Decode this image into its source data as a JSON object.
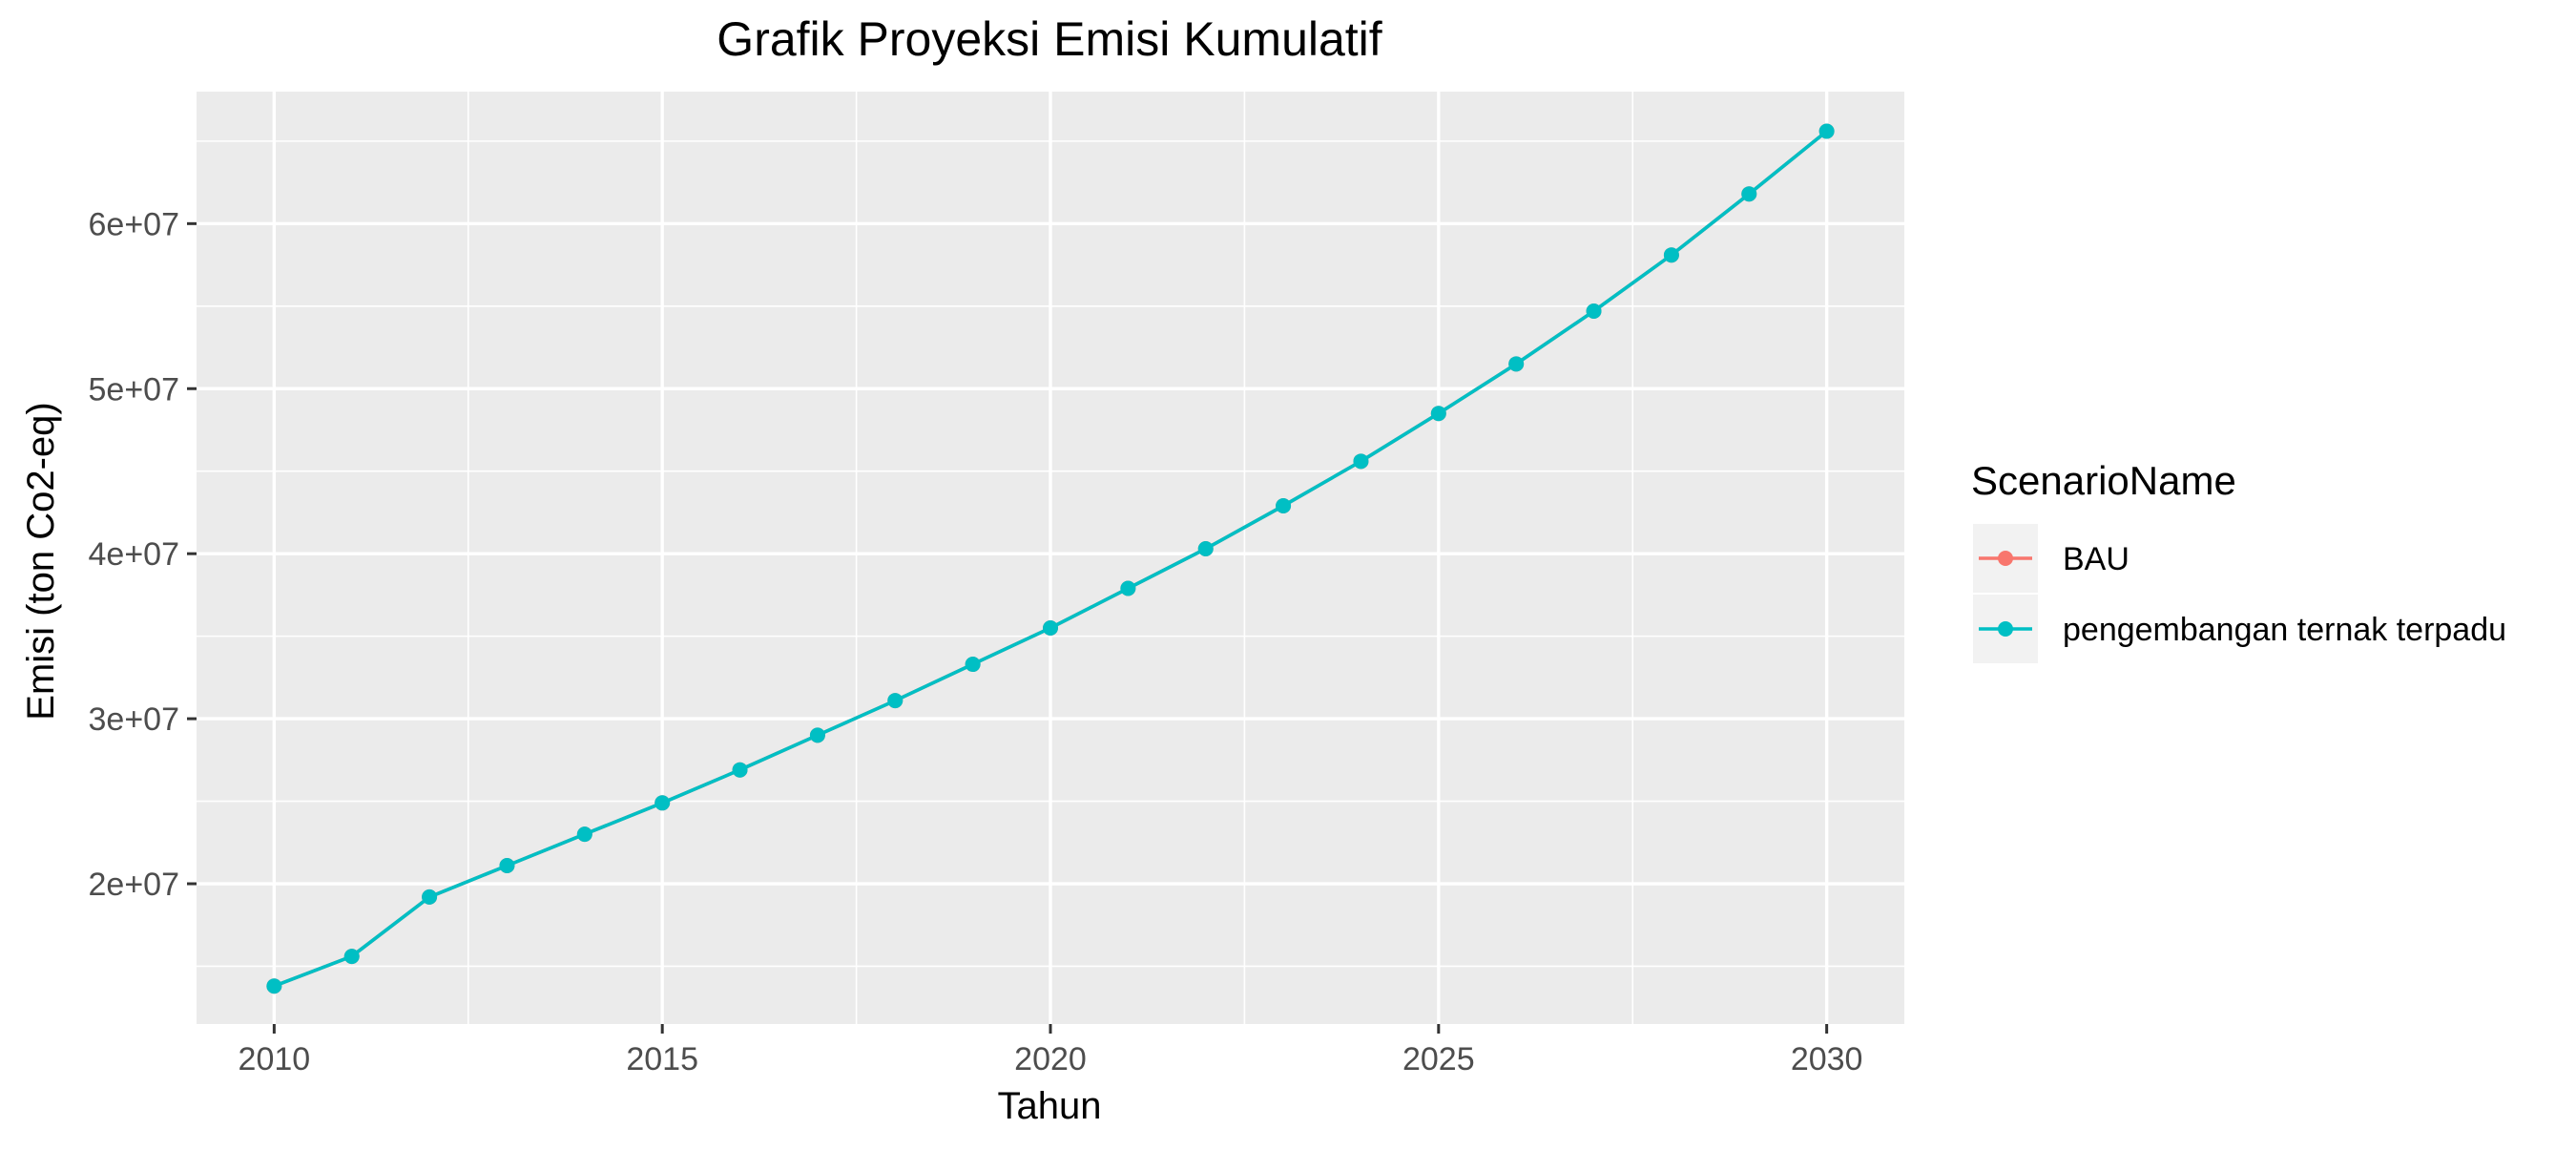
{
  "chart_data": {
    "type": "line",
    "title": "Grafik Proyeksi Emisi Kumulatif",
    "xlabel": "Tahun",
    "ylabel": "Emisi (ton Co2-eq)",
    "x": [
      2010,
      2011,
      2012,
      2013,
      2014,
      2015,
      2016,
      2017,
      2018,
      2019,
      2020,
      2021,
      2022,
      2023,
      2024,
      2025,
      2026,
      2027,
      2028,
      2029,
      2030
    ],
    "xlim": [
      2009,
      2031
    ],
    "ylim": [
      11500000,
      68000000
    ],
    "xticks": [
      2010,
      2015,
      2020,
      2025,
      2030
    ],
    "xtick_labels": [
      "2010",
      "2015",
      "2020",
      "2025",
      "2030"
    ],
    "yticks": [
      20000000,
      30000000,
      40000000,
      50000000,
      60000000
    ],
    "ytick_labels": [
      "2e+07",
      "3e+07",
      "4e+07",
      "5e+07",
      "6e+07"
    ],
    "grid": true,
    "legend": {
      "title": "ScenarioName",
      "position": "right"
    },
    "series": [
      {
        "name": "BAU",
        "color": "#F8766D",
        "values": [
          13800000,
          15600000,
          19200000,
          21100000,
          23000000,
          24900000,
          26900000,
          29000000,
          31100000,
          33300000,
          35500000,
          37900000,
          40300000,
          42900000,
          45600000,
          48500000,
          51500000,
          54700000,
          58100000,
          61800000,
          65600000
        ]
      },
      {
        "name": "pengembangan ternak terpadu",
        "color": "#00BFC4",
        "values": [
          13800000,
          15600000,
          19200000,
          21100000,
          23000000,
          24900000,
          26900000,
          29000000,
          31100000,
          33300000,
          35500000,
          37900000,
          40300000,
          42900000,
          45600000,
          48500000,
          51500000,
          54700000,
          58100000,
          61800000,
          65600000
        ]
      }
    ],
    "panel_background": "#EBEBEB",
    "grid_color": "#FFFFFF"
  }
}
